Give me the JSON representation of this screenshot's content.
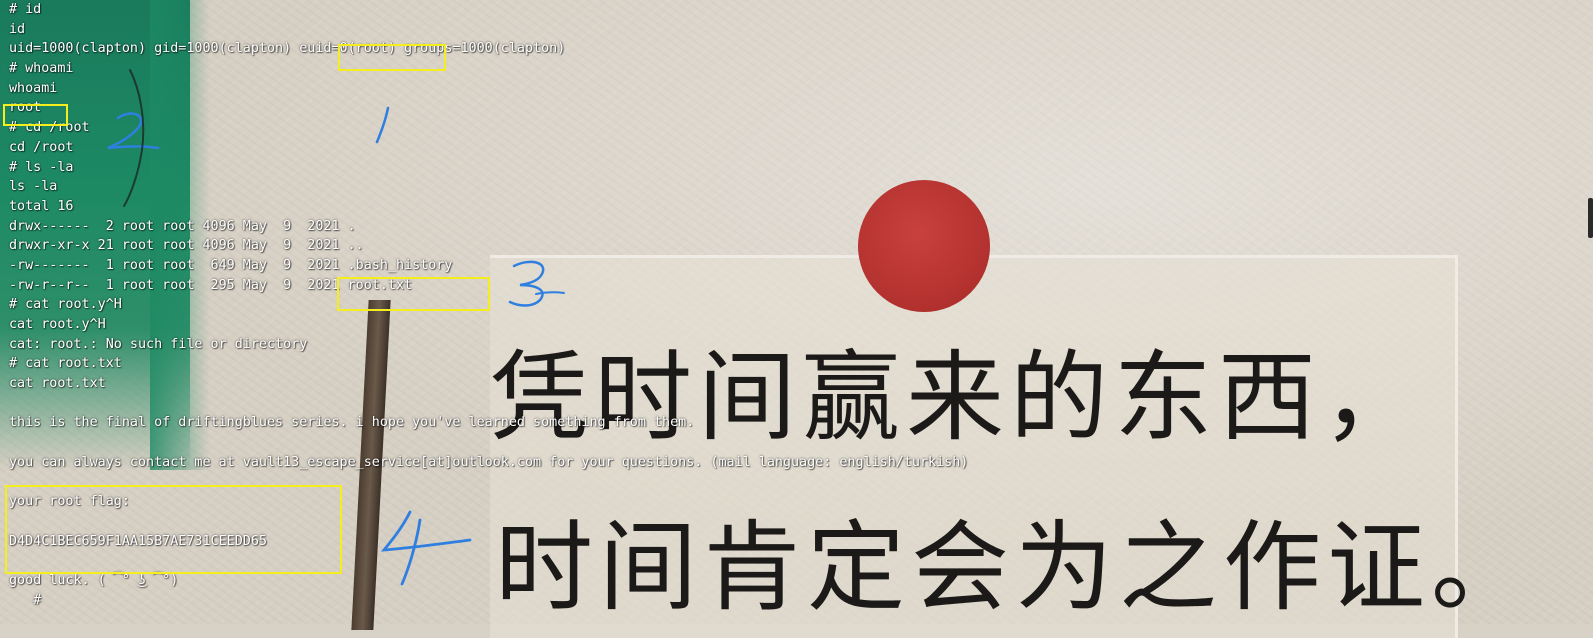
{
  "terminal": {
    "lines": [
      "# id",
      "id",
      "uid=1000(clapton) gid=1000(clapton) euid=0(root) groups=1000(clapton)",
      "# whoami",
      "whoami",
      "root",
      "# cd /root",
      "cd /root",
      "# ls -la",
      "ls -la",
      "total 16",
      "drwx------  2 root root 4096 May  9  2021 .",
      "drwxr-xr-x 21 root root 4096 May  9  2021 ..",
      "-rw-------  1 root root  649 May  9  2021 .bash_history",
      "-rw-r--r--  1 root root  295 May  9  2021 root.txt",
      "# cat root.y^H",
      "cat root.y^H",
      "cat: root.: No such file or directory",
      "# cat root.txt",
      "cat root.txt",
      "",
      "this is the final of driftingblues series. i hope you've learned something from them.",
      "",
      "you can always contact me at vault13_escape_service[at]outlook.com for your questions. (mail language: english/turkish)",
      "",
      "your root flag:",
      "",
      "D4D4C1BEC659F1AA15B7AE731CEEDD65",
      "",
      "good luck. ( ͡° ͜ʖ ͡°)",
      "   #"
    ]
  },
  "annotations": [
    "1",
    "2",
    "3",
    "4"
  ],
  "background_text": {
    "line1": "凭时间赢来的东西，",
    "line2": "时间肯定会为之作证。"
  },
  "colors": {
    "highlight_box": "#f5ee1e",
    "annotation": "#2f7fe0",
    "terminal_text": "#ffffff",
    "sun": "#b8332f"
  }
}
